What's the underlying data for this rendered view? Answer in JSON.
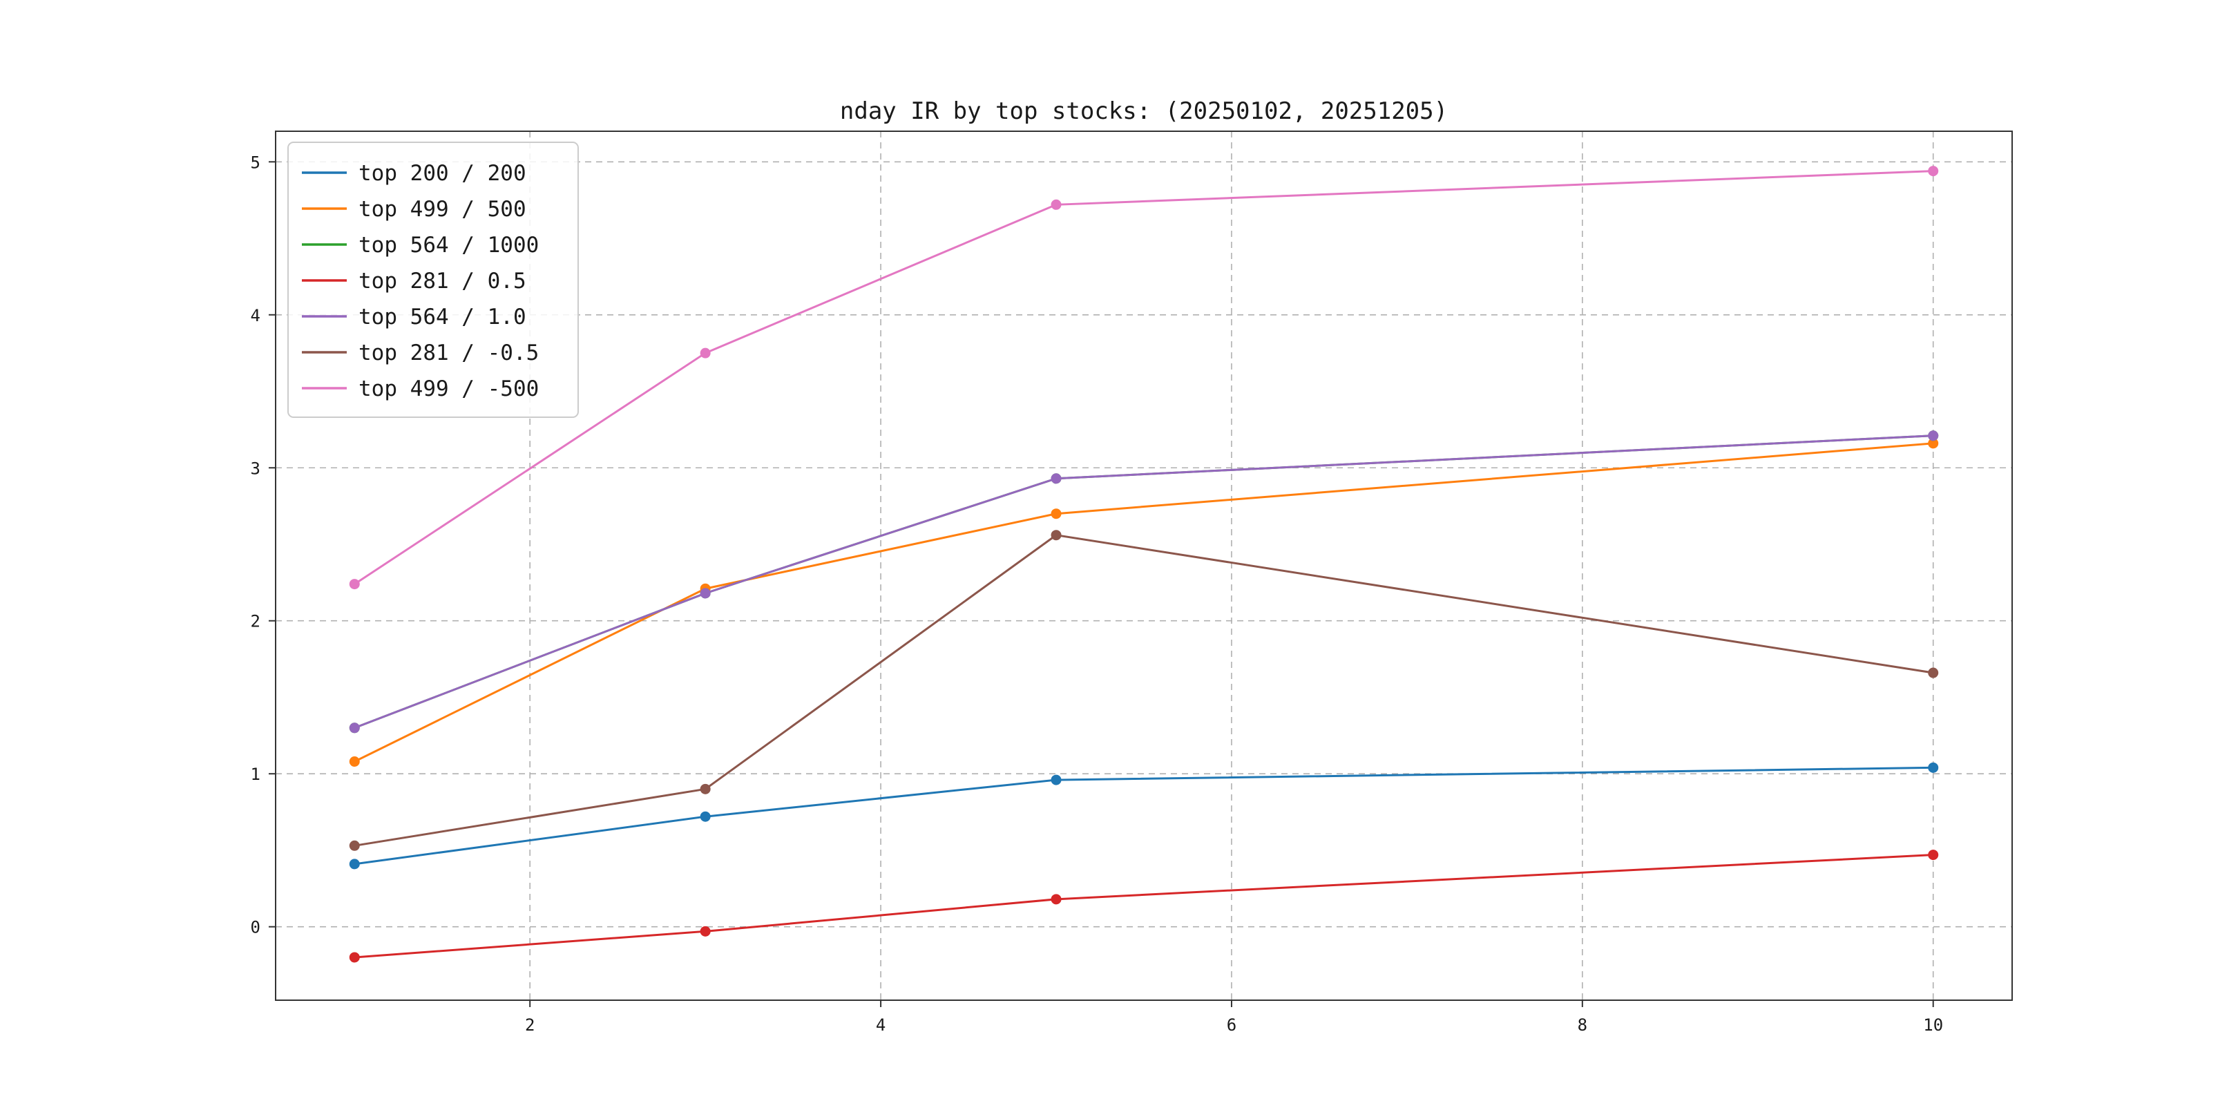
{
  "chart_data": {
    "type": "line",
    "title": "nday IR by top stocks: (20250102, 20251205)",
    "x": [
      1,
      3,
      5,
      10
    ],
    "xlim": [
      0.55,
      10.45
    ],
    "ylim": [
      -0.48,
      5.2
    ],
    "xticks": [
      2,
      4,
      6,
      8,
      10
    ],
    "yticks": [
      0,
      1,
      2,
      3,
      4,
      5
    ],
    "grid": true,
    "grid_style": "dashed",
    "legend_position": "upper-left",
    "background": "#ffffff",
    "spine_color": "#333333",
    "grid_color": "#b0b0b0",
    "series": [
      {
        "name": "top 200 / 200",
        "color": "#1f77b4",
        "values": [
          0.41,
          0.72,
          0.96,
          1.04
        ]
      },
      {
        "name": "top 499 / 500",
        "color": "#ff7f0e",
        "values": [
          1.08,
          2.21,
          2.7,
          3.16
        ]
      },
      {
        "name": "top 564 / 1000",
        "color": "#2ca02c",
        "values": [
          1.3,
          2.18,
          2.93,
          3.21
        ]
      },
      {
        "name": "top 281 / 0.5",
        "color": "#d62728",
        "values": [
          -0.2,
          -0.03,
          0.18,
          0.47
        ]
      },
      {
        "name": "top 564 / 1.0",
        "color": "#9467bd",
        "values": [
          1.3,
          2.18,
          2.93,
          3.21
        ]
      },
      {
        "name": "top 281 / -0.5",
        "color": "#8c564b",
        "values": [
          0.53,
          0.9,
          2.56,
          1.66
        ]
      },
      {
        "name": "top 499 / -500",
        "color": "#e377c2",
        "values": [
          2.24,
          3.75,
          4.72,
          4.94
        ]
      }
    ]
  }
}
